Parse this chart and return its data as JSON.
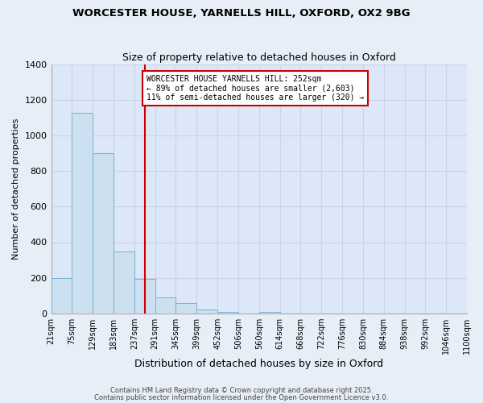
{
  "title1": "WORCESTER HOUSE, YARNELLS HILL, OXFORD, OX2 9BG",
  "title2": "Size of property relative to detached houses in Oxford",
  "xlabel": "Distribution of detached houses by size in Oxford",
  "ylabel": "Number of detached properties",
  "bar_values": [
    200,
    1125,
    900,
    350,
    195,
    90,
    57,
    22,
    10,
    0,
    10,
    0,
    0,
    0,
    0,
    0,
    0,
    0,
    0,
    0
  ],
  "bin_labels": [
    "21sqm",
    "75sqm",
    "129sqm",
    "183sqm",
    "237sqm",
    "291sqm",
    "345sqm",
    "399sqm",
    "452sqm",
    "506sqm",
    "560sqm",
    "614sqm",
    "668sqm",
    "722sqm",
    "776sqm",
    "830sqm",
    "884sqm",
    "938sqm",
    "992sqm",
    "1046sqm",
    "1100sqm"
  ],
  "bar_color": "#cce0f0",
  "bar_edge_color": "#7ab0d4",
  "vline_x": 4.5,
  "vline_color": "#cc0000",
  "annotation_line1": "WORCESTER HOUSE YARNELLS HILL: 252sqm",
  "annotation_line2": "← 89% of detached houses are smaller (2,603)",
  "annotation_line3": "11% of semi-detached houses are larger (320) →",
  "annotation_box_color": "#cc0000",
  "ylim": [
    0,
    1400
  ],
  "yticks": [
    0,
    200,
    400,
    600,
    800,
    1000,
    1200,
    1400
  ],
  "footer1": "Contains HM Land Registry data © Crown copyright and database right 2025.",
  "footer2": "Contains public sector information licensed under the Open Government Licence v3.0.",
  "bg_color": "#e8eef8",
  "grid_color": "#c8d4e8",
  "plot_bg_color": "#dce8f8"
}
